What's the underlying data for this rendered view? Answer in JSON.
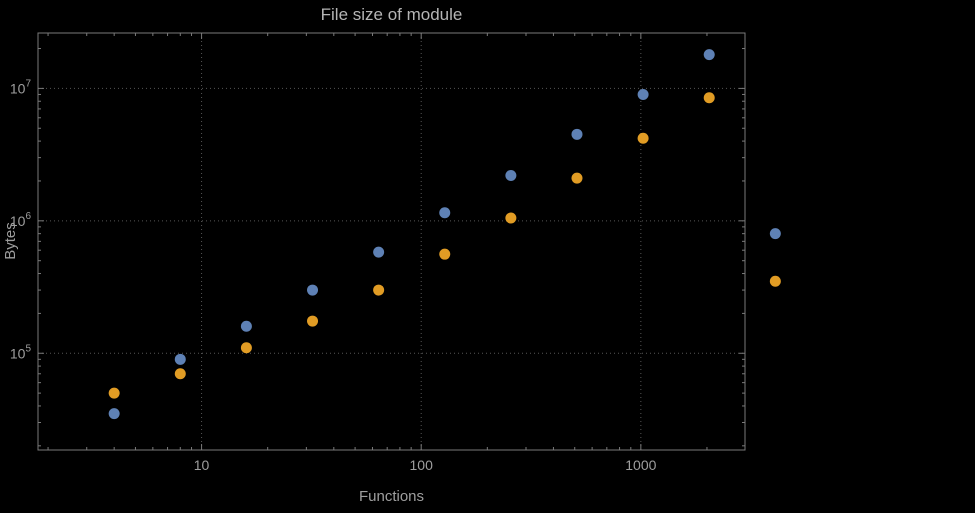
{
  "chart_data": {
    "type": "scatter",
    "title": "File size of module",
    "xlabel": "Functions",
    "ylabel": "Bytes",
    "x_scale": "log",
    "y_scale": "log",
    "xlim": [
      1.8,
      2980
    ],
    "ylim": [
      18600,
      26200000
    ],
    "grid": true,
    "grid_style": "dotted",
    "legend": "none",
    "x_ticks": [
      {
        "value": 10,
        "label": "10"
      },
      {
        "value": 100,
        "label": "100"
      },
      {
        "value": 1000,
        "label": "1000"
      }
    ],
    "y_ticks": [
      {
        "value": 100000,
        "label": "10^5"
      },
      {
        "value": 1000000,
        "label": "10^6"
      },
      {
        "value": 10000000,
        "label": "10^7"
      }
    ],
    "series": [
      {
        "name": "blue",
        "color": "#5e81b5",
        "x": [
          4,
          8,
          16,
          32,
          64,
          128,
          256,
          512,
          1024,
          2048,
          4096
        ],
        "y": [
          35000,
          90000,
          160000,
          300000,
          580000,
          1150000,
          2200000,
          4500000,
          9000000,
          18000000,
          800000
        ]
      },
      {
        "name": "orange",
        "color": "#e19c24",
        "x": [
          4,
          8,
          16,
          32,
          64,
          128,
          256,
          512,
          1024,
          2048,
          4096
        ],
        "y": [
          50000,
          70000,
          110000,
          175000,
          300000,
          560000,
          1050000,
          2100000,
          4200000,
          8500000,
          350000
        ]
      }
    ],
    "style": {
      "background": "#000000",
      "grid_color": "#565656",
      "frame_color": "#7a7a7a",
      "label_color": "#9e9e9e",
      "title_color": "#b5b5b5",
      "point_radius": 5.5
    }
  }
}
